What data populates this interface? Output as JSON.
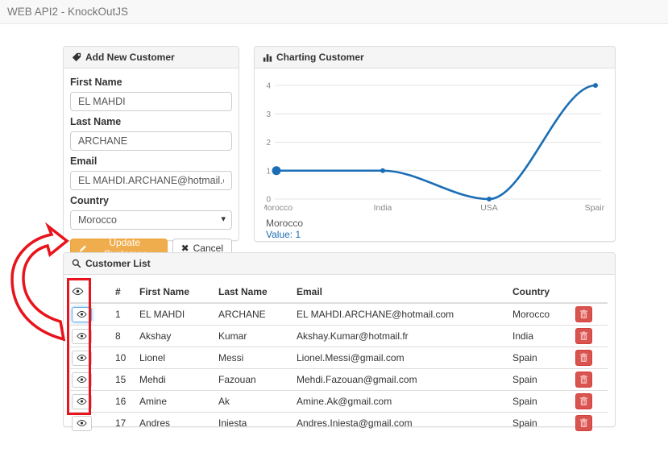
{
  "header": {
    "title": "WEB API2 - KnockOutJS"
  },
  "form": {
    "title": "Add New Customer",
    "first_name": {
      "label": "First Name",
      "value": "EL MAHDI"
    },
    "last_name": {
      "label": "Last Name",
      "value": "ARCHANE"
    },
    "email": {
      "label": "Email",
      "value": "EL MAHDI.ARCHANE@hotmail.com"
    },
    "country": {
      "label": "Country",
      "value": "Morocco"
    },
    "update_label": "Update Customer",
    "cancel_label": "Cancel"
  },
  "chart_panel": {
    "title": "Charting Customer",
    "tooltip": {
      "label": "Morocco",
      "value_text": "Value: 1"
    }
  },
  "chart_data": {
    "type": "line",
    "categories": [
      "Morocco",
      "India",
      "USA",
      "Spain"
    ],
    "values": [
      1,
      1,
      0,
      4
    ],
    "title": "Charting Customer",
    "xlabel": "",
    "ylabel": "",
    "ylim": [
      0,
      4
    ],
    "yticks": [
      0,
      1,
      2,
      3,
      4
    ],
    "grid": true,
    "legend": false,
    "line_color": "#1b6eb5",
    "highlight_index": 0,
    "highlight_label": "Morocco",
    "highlight_value": 1
  },
  "list": {
    "title": "Customer List",
    "columns": [
      "#",
      "First Name",
      "Last Name",
      "Email",
      "Country"
    ],
    "rows": [
      {
        "id": "1",
        "first": "EL MAHDI",
        "last": "ARCHANE",
        "email": "EL MAHDI.ARCHANE@hotmail.com",
        "country": "Morocco"
      },
      {
        "id": "8",
        "first": "Akshay",
        "last": "Kumar",
        "email": "Akshay.Kumar@hotmail.fr",
        "country": "India"
      },
      {
        "id": "10",
        "first": "Lionel",
        "last": "Messi",
        "email": "Lionel.Messi@gmail.com",
        "country": "Spain"
      },
      {
        "id": "15",
        "first": "Mehdi",
        "last": "Fazouan",
        "email": "Mehdi.Fazouan@gmail.com",
        "country": "Spain"
      },
      {
        "id": "16",
        "first": "Amine",
        "last": "Ak",
        "email": "Amine.Ak@gmail.com",
        "country": "Spain"
      },
      {
        "id": "17",
        "first": "Andres",
        "last": "Iniesta",
        "email": "Andres.Iniesta@gmail.com",
        "country": "Spain"
      }
    ]
  },
  "icons": {
    "form_header": "tag-icon",
    "chart_header": "bar-chart-icon",
    "list_header": "search-icon",
    "row_view": "eye-icon",
    "row_delete": "trash-icon",
    "update": "pencil-icon",
    "cancel": "x-icon"
  },
  "colors": {
    "navbar_bg": "#f8f8f8",
    "panel_border": "#ddd",
    "panel_heading_bg": "#f5f5f5",
    "warning_button": "#f0ad4e",
    "danger_button": "#d9534f",
    "focus_ring": "#66afe9",
    "chart_line": "#1b6eb5",
    "annotation_red": "#e8131b"
  }
}
